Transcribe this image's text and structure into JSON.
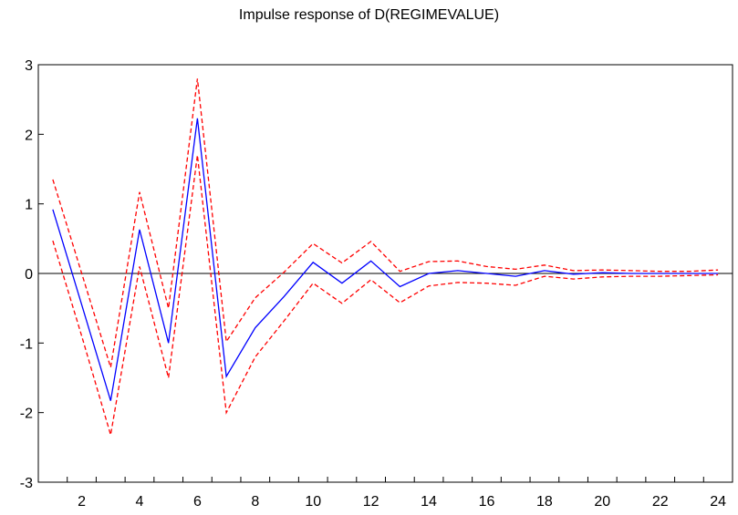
{
  "chart_data": {
    "type": "line",
    "title": "Impulse response of D(REGIMEVALUE)",
    "xlabel": "",
    "ylabel": "",
    "x": [
      1,
      2,
      3,
      4,
      5,
      6,
      7,
      8,
      9,
      10,
      11,
      12,
      13,
      14,
      15,
      16,
      17,
      18,
      19,
      20,
      21,
      22,
      23,
      24
    ],
    "xlim": [
      0.5,
      24.5
    ],
    "ylim": [
      -3,
      3
    ],
    "xticks": [
      2,
      4,
      6,
      8,
      10,
      12,
      14,
      16,
      18,
      20,
      22,
      24
    ],
    "yticks": [
      3,
      2,
      1,
      0,
      -1,
      -2,
      -3
    ],
    "grid": false,
    "legend": "none",
    "zero_line": true,
    "series": [
      {
        "role": "response",
        "color": "#0000ff",
        "style": "solid",
        "values": [
          0.92,
          -0.45,
          -1.83,
          0.63,
          -1.0,
          2.23,
          -1.48,
          -0.78,
          -0.33,
          0.16,
          -0.14,
          0.18,
          -0.19,
          0.0,
          0.04,
          0.0,
          -0.04,
          0.04,
          -0.01,
          0.01,
          0.0,
          0.0,
          0.0,
          0.0
        ]
      },
      {
        "role": "upper",
        "color": "#ff0000",
        "style": "dashed",
        "values": [
          1.35,
          0.0,
          -1.35,
          1.17,
          -0.5,
          2.8,
          -0.98,
          -0.35,
          0.02,
          0.43,
          0.15,
          0.46,
          0.03,
          0.17,
          0.18,
          0.1,
          0.06,
          0.12,
          0.04,
          0.05,
          0.04,
          0.03,
          0.03,
          0.05
        ]
      },
      {
        "role": "lower",
        "color": "#ff0000",
        "style": "dashed",
        "values": [
          0.47,
          -0.9,
          -2.32,
          0.1,
          -1.5,
          1.7,
          -2.0,
          -1.2,
          -0.68,
          -0.14,
          -0.43,
          -0.09,
          -0.42,
          -0.18,
          -0.13,
          -0.14,
          -0.17,
          -0.04,
          -0.08,
          -0.05,
          -0.04,
          -0.04,
          -0.03,
          -0.02
        ]
      }
    ]
  }
}
